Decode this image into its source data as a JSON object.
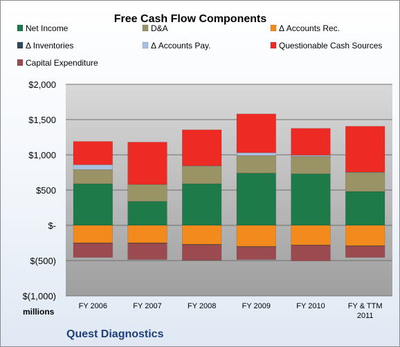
{
  "chart_data": {
    "type": "bar",
    "stacked": true,
    "title": "Free Cash Flow Components",
    "categories": [
      [
        "FY 2006"
      ],
      [
        "FY 2007"
      ],
      [
        "FY 2008"
      ],
      [
        "FY 2009"
      ],
      [
        "FY 2010"
      ],
      [
        "FY & TTM",
        "2011"
      ]
    ],
    "unit_label": "millions",
    "company": "Quest Diagnostics",
    "ylim": [
      -1000,
      2000
    ],
    "yticks": [
      {
        "value": 2000,
        "label": "$2,000"
      },
      {
        "value": 1500,
        "label": "$1,500"
      },
      {
        "value": 1000,
        "label": "$1,000"
      },
      {
        "value": 500,
        "label": "$500"
      },
      {
        "value": 0,
        "label": "$-"
      },
      {
        "value": -500,
        "label": "$(500)"
      },
      {
        "value": -1000,
        "label": "$(1,000)"
      }
    ],
    "grid": true,
    "legend_position": "top",
    "series": [
      {
        "name": "Net Income",
        "color": "#1f7a4a",
        "values": [
          590,
          340,
          590,
          740,
          730,
          480
        ]
      },
      {
        "name": "D&A",
        "color": "#9a9366",
        "values": [
          200,
          240,
          250,
          250,
          250,
          270
        ]
      },
      {
        "name": "Δ Accounts Rec.",
        "color": "#f28a1e",
        "values": [
          -250,
          -250,
          -270,
          -300,
          -280,
          -290
        ]
      },
      {
        "name": "Δ Inventories",
        "color": "#2e4a63",
        "values": [
          -5,
          -5,
          -5,
          -5,
          -5,
          -5
        ]
      },
      {
        "name": "Δ Accounts Pay.",
        "color": "#a9c0de",
        "values": [
          70,
          0,
          5,
          40,
          15,
          5
        ]
      },
      {
        "name": "Questionable Cash Sources",
        "color": "#ee2a24",
        "values": [
          330,
          600,
          510,
          550,
          380,
          650
        ]
      },
      {
        "name": "Capital Expenditure",
        "color": "#9b4a50",
        "values": [
          -200,
          -230,
          -220,
          -180,
          -220,
          -160
        ]
      }
    ]
  }
}
